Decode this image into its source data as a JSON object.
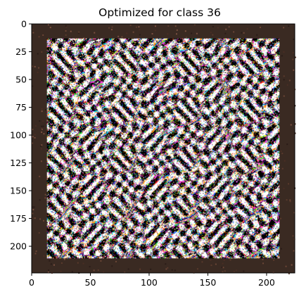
{
  "figure": {
    "title": "Optimized for class 36",
    "image_kind": "activation-maximization noise pattern",
    "image_size": [
      224,
      224
    ],
    "inner_region_start": 13,
    "inner_region_end": 211,
    "border_color": "#3a2a22",
    "xaxis": {
      "ticks": [
        0,
        50,
        100,
        150,
        200
      ],
      "labels": [
        "0",
        "50",
        "100",
        "150",
        "200"
      ],
      "range": [
        0,
        224
      ]
    },
    "yaxis": {
      "ticks": [
        0,
        25,
        50,
        75,
        100,
        125,
        150,
        175,
        200
      ],
      "labels": [
        "0",
        "25",
        "50",
        "75",
        "100",
        "125",
        "150",
        "175",
        "200"
      ],
      "range": [
        0,
        224
      ],
      "inverted": true
    }
  }
}
